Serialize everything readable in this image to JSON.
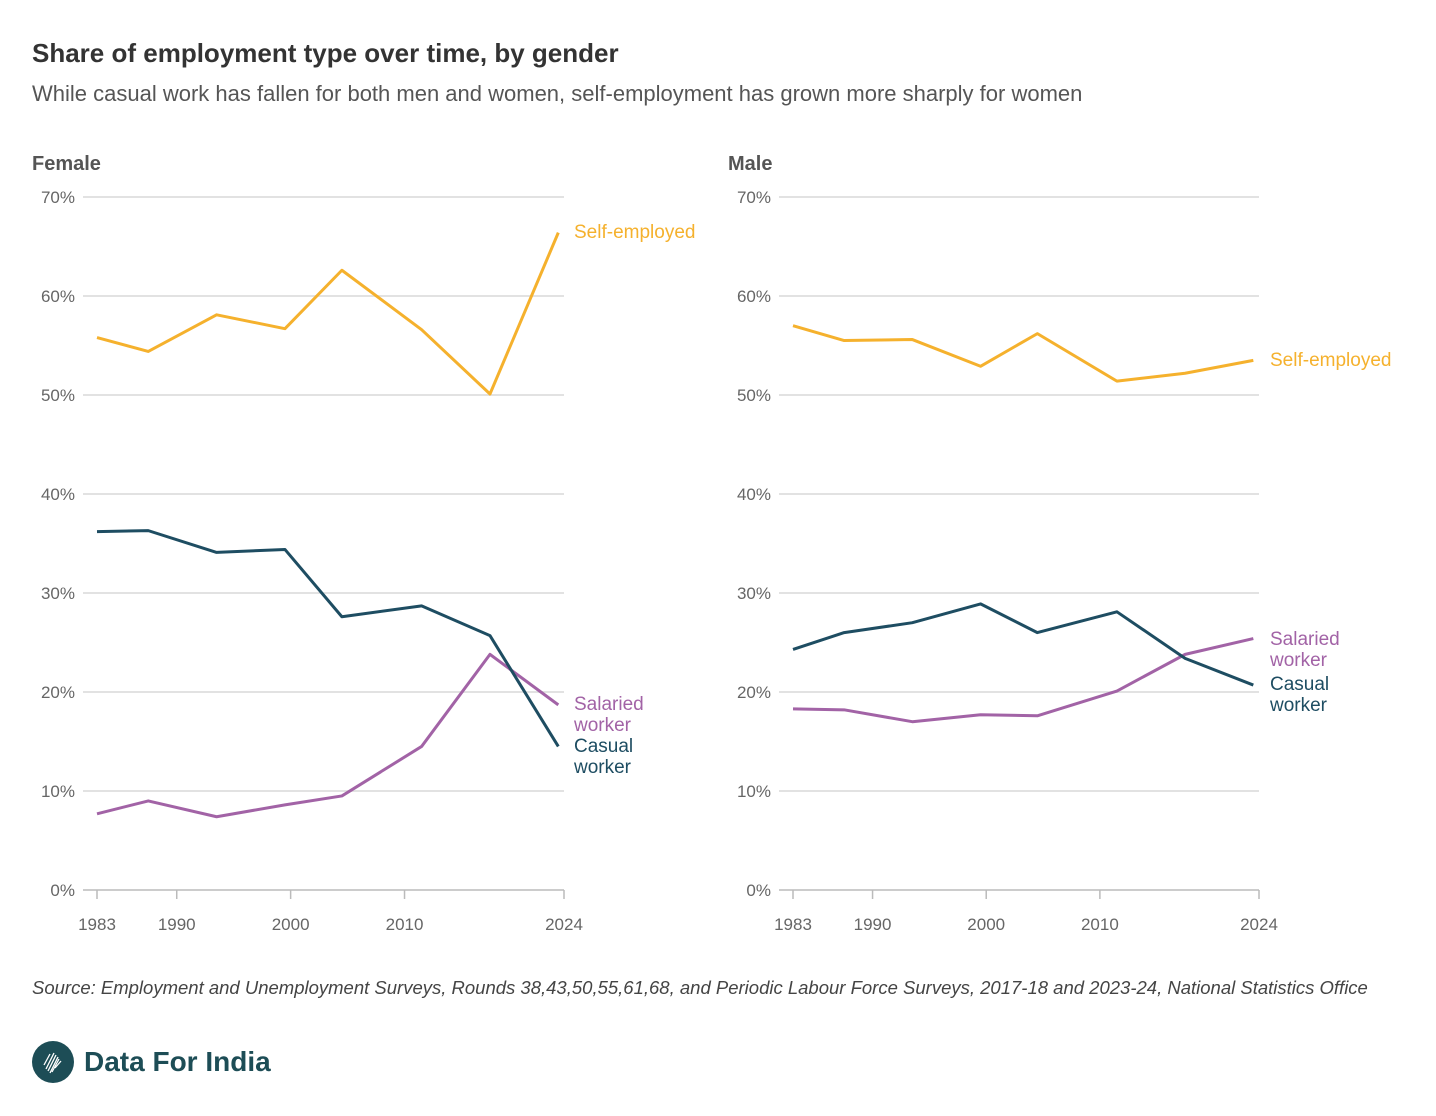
{
  "title": "Share of employment type over time, by gender",
  "subtitle": "While casual work has fallen for both men and women, self-employment has grown more sharply for women",
  "source": "Source: Employment and Unemployment Surveys, Rounds 38,43,50,55,61,68, and Periodic Labour Force Surveys, 2017-18 and 2023-24, National Statistics Office",
  "brand": {
    "name": "Data For India",
    "icon": "india-map-logo-icon",
    "color": "#1d4d56"
  },
  "chart_data": [
    {
      "type": "line",
      "title": "Female",
      "x": [
        1983,
        1987.5,
        1993.5,
        1999.5,
        2004.5,
        2011.5,
        2017.5,
        2023.5
      ],
      "xlim": [
        1983,
        2024
      ],
      "xticks": [
        "1983",
        "1990",
        "2000",
        "2010",
        "2024"
      ],
      "ylim": [
        0,
        70
      ],
      "yticks": [
        "0%",
        "10%",
        "20%",
        "30%",
        "40%",
        "50%",
        "60%",
        "70%"
      ],
      "grid": true,
      "legend": "direct labels at line ends",
      "series": [
        {
          "name": "Self-employed",
          "color": "#f5b12d",
          "values": [
            55.8,
            54.4,
            58.1,
            56.7,
            62.6,
            56.6,
            50.1,
            66.4
          ]
        },
        {
          "name": "Salaried worker",
          "color": "#a263a6",
          "values": [
            7.7,
            9.0,
            7.4,
            8.6,
            9.5,
            14.5,
            23.8,
            18.7
          ]
        },
        {
          "name": "Casual worker",
          "color": "#1e4d62",
          "values": [
            36.2,
            36.3,
            34.1,
            34.4,
            27.6,
            28.7,
            25.7,
            14.5
          ]
        }
      ]
    },
    {
      "type": "line",
      "title": "Male",
      "x": [
        1983,
        1987.5,
        1993.5,
        1999.5,
        2004.5,
        2011.5,
        2017.5,
        2023.5
      ],
      "xlim": [
        1983,
        2024
      ],
      "xticks": [
        "1983",
        "1990",
        "2000",
        "2010",
        "2024"
      ],
      "ylim": [
        0,
        70
      ],
      "yticks": [
        "0%",
        "10%",
        "20%",
        "30%",
        "40%",
        "50%",
        "60%",
        "70%"
      ],
      "grid": true,
      "legend": "direct labels at line ends",
      "series": [
        {
          "name": "Self-employed",
          "color": "#f5b12d",
          "values": [
            57.0,
            55.5,
            55.6,
            52.9,
            56.2,
            51.4,
            52.2,
            53.5
          ]
        },
        {
          "name": "Salaried worker",
          "color": "#a263a6",
          "values": [
            18.3,
            18.2,
            17.0,
            17.7,
            17.6,
            20.1,
            23.8,
            25.4
          ]
        },
        {
          "name": "Casual worker",
          "color": "#1e4d62",
          "values": [
            24.3,
            26.0,
            27.0,
            28.9,
            26.0,
            28.1,
            23.4,
            20.7
          ]
        }
      ]
    }
  ]
}
